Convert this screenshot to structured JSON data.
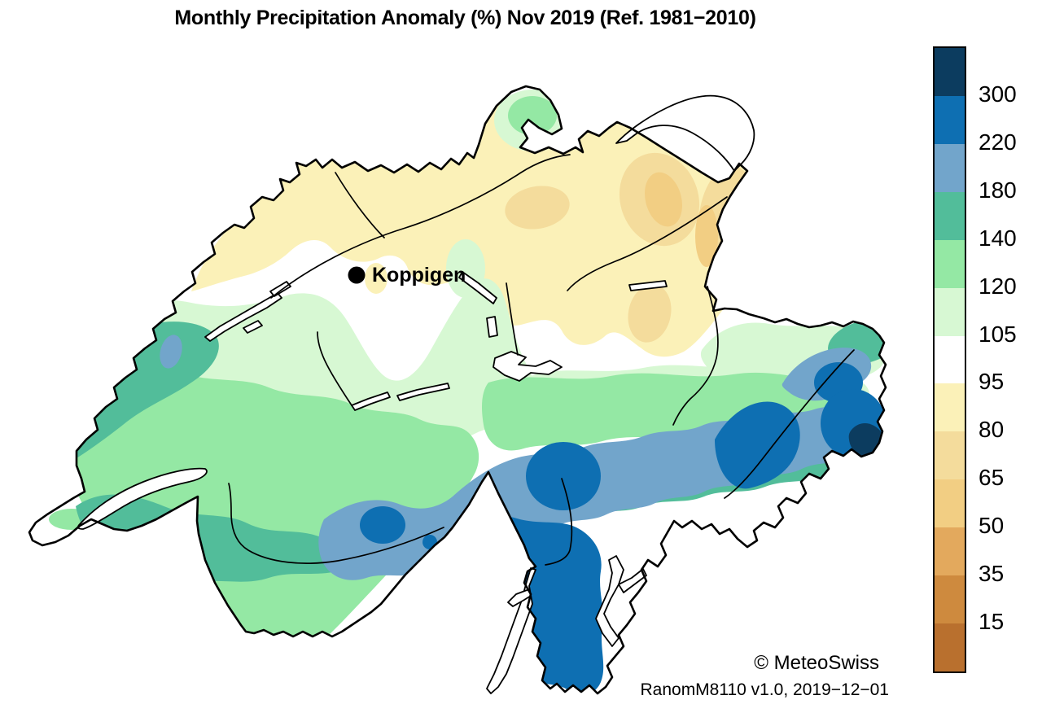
{
  "title": "Monthly Precipitation Anomaly (%) Nov 2019  (Ref. 1981−2010)",
  "station_label": "Koppigen",
  "attribution": "© MeteoSwiss",
  "version_line": "RanomM8110 v1.0, 2019−12−01",
  "colorbar": {
    "tick_labels": [
      "300",
      "220",
      "180",
      "140",
      "120",
      "105",
      "95",
      "80",
      "65",
      "50",
      "35",
      "15"
    ],
    "cells_top_to_bottom": [
      "#0C3C5F",
      "#0E6FB2",
      "#72A5CB",
      "#52BD9A",
      "#94E8A4",
      "#D7F8D3",
      "#FFFFFF",
      "#FBF1B8",
      "#F4DC9C",
      "#F2CE83",
      "#E3A95D",
      "#CE8A3E",
      "#B9702E"
    ],
    "band_meaning_top_to_bottom": [
      ">300",
      "220-300",
      "180-220",
      "140-180",
      "120-140",
      "105-120",
      "95-105",
      "80-95",
      "65-80",
      "50-65",
      "35-50",
      "15-35",
      "<15"
    ]
  },
  "colors": {
    "border": "#000000",
    "lake_fill": "#FFFFFF",
    "marker": "#000000",
    "background": "#FFFFFF"
  }
}
